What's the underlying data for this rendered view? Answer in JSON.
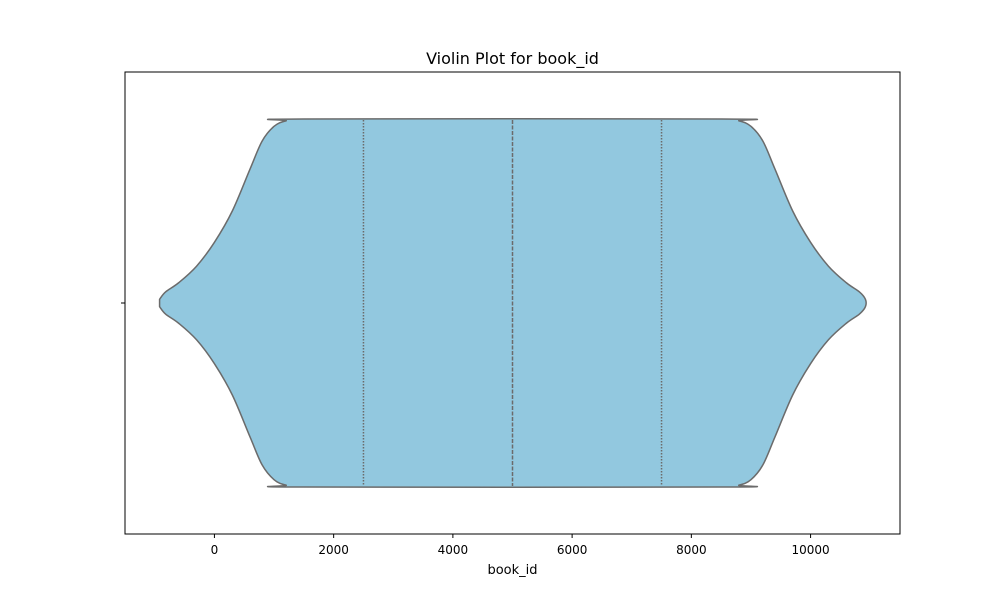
{
  "chart_data": {
    "type": "violin",
    "title": "Violin Plot for book_id",
    "xlabel": "book_id",
    "ylabel": "",
    "xlim": [
      -1500,
      11500
    ],
    "x_ticks": [
      0,
      2000,
      4000,
      6000,
      8000,
      10000
    ],
    "grid": false,
    "fill_color": "#92c8df",
    "edge_color": "#6b6b6b",
    "violin": {
      "min_extent": -920,
      "max_extent": 10920,
      "quartiles": [
        2500,
        5000,
        7500
      ],
      "density_profile": [
        [
          -920,
          0.02
        ],
        [
          -820,
          0.06
        ],
        [
          -600,
          0.11
        ],
        [
          -300,
          0.2
        ],
        [
          0,
          0.33
        ],
        [
          300,
          0.5
        ],
        [
          600,
          0.73
        ],
        [
          800,
          0.88
        ],
        [
          1000,
          0.96
        ],
        [
          1200,
          0.99
        ],
        [
          1500,
          1.0
        ],
        [
          8500,
          1.0
        ],
        [
          8800,
          0.99
        ],
        [
          9000,
          0.96
        ],
        [
          9200,
          0.88
        ],
        [
          9400,
          0.73
        ],
        [
          9700,
          0.5
        ],
        [
          10000,
          0.33
        ],
        [
          10300,
          0.2
        ],
        [
          10600,
          0.11
        ],
        [
          10820,
          0.06
        ],
        [
          10920,
          0.02
        ]
      ]
    }
  }
}
